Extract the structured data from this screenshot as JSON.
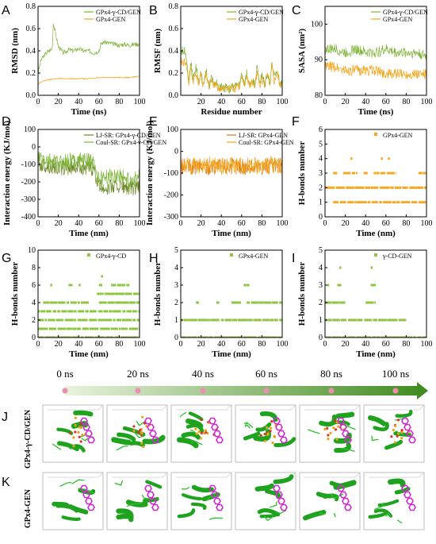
{
  "figure": {
    "panel_letters": [
      "A",
      "B",
      "C",
      "D",
      "E",
      "F",
      "G",
      "H",
      "I",
      "J",
      "K"
    ],
    "timeline": {
      "labels": [
        "0 ns",
        "20 ns",
        "40 ns",
        "60 ns",
        "80 ns",
        "100 ns"
      ]
    },
    "row_labels": {
      "J": "GPx4-γ-CD/GEN",
      "K": "GPx4-GEN"
    }
  },
  "colors": {
    "green": "#7fb43a",
    "orange": "#f2a51c",
    "olive": "#6b8a23",
    "darkorange": "#e07b10",
    "hbond_green": "#8ec63f",
    "hbond_orange": "#f7a823"
  },
  "chart_data": [
    {
      "id": "A",
      "type": "line",
      "xlabel": "Time (ns)",
      "ylabel": "RMSD (nm)",
      "xlim": [
        0,
        100
      ],
      "ylim": [
        0,
        0.8
      ],
      "xticks": [
        0,
        20,
        40,
        60,
        80,
        100
      ],
      "yticks": [
        0.0,
        0.2,
        0.4,
        0.6,
        0.8
      ],
      "series": [
        {
          "name": "GPx4-γ-CD/GEN",
          "x": [
            0,
            3,
            8,
            14,
            15,
            20,
            25,
            30,
            35,
            40,
            45,
            50,
            55,
            60,
            62,
            65,
            70,
            75,
            80,
            85,
            90,
            95,
            100
          ],
          "y": [
            0.2,
            0.32,
            0.38,
            0.42,
            0.65,
            0.44,
            0.38,
            0.41,
            0.4,
            0.42,
            0.4,
            0.4,
            0.38,
            0.4,
            0.46,
            0.48,
            0.47,
            0.46,
            0.45,
            0.46,
            0.45,
            0.46,
            0.46
          ]
        },
        {
          "name": "GPx4-GEN",
          "x": [
            0,
            5,
            10,
            20,
            30,
            40,
            50,
            60,
            70,
            80,
            90,
            100
          ],
          "y": [
            0.1,
            0.13,
            0.14,
            0.15,
            0.15,
            0.15,
            0.15,
            0.16,
            0.16,
            0.16,
            0.16,
            0.17
          ]
        }
      ]
    },
    {
      "id": "B",
      "type": "line",
      "xlabel": "Residue number",
      "ylabel": "RMSF (nm)",
      "xlim": [
        0,
        100
      ],
      "ylim": [
        0,
        0.8
      ],
      "xticks": [
        20,
        40,
        60,
        80,
        100
      ],
      "yticks": [
        0.0,
        0.2,
        0.4,
        0.6,
        0.8
      ],
      "series": [
        {
          "name": "GPx4-γ-CD/GEN",
          "x": [
            5,
            8,
            10,
            12,
            15,
            18,
            20,
            22,
            25,
            28,
            30,
            33,
            35,
            38,
            40,
            43,
            45,
            48,
            50,
            53,
            55,
            58,
            60,
            63,
            65,
            68,
            70,
            73,
            75,
            78,
            80,
            83,
            85,
            88,
            90,
            92,
            95,
            98,
            100
          ],
          "y": [
            0.4,
            0.12,
            0.3,
            0.15,
            0.25,
            0.12,
            0.2,
            0.1,
            0.22,
            0.08,
            0.15,
            0.1,
            0.12,
            0.06,
            0.08,
            0.06,
            0.1,
            0.05,
            0.08,
            0.07,
            0.12,
            0.08,
            0.18,
            0.1,
            0.2,
            0.08,
            0.15,
            0.1,
            0.25,
            0.12,
            0.18,
            0.1,
            0.2,
            0.12,
            0.3,
            0.15,
            0.22,
            0.1,
            0.15
          ]
        },
        {
          "name": "GPx4-GEN",
          "x": [
            5,
            8,
            10,
            12,
            15,
            18,
            20,
            22,
            25,
            28,
            30,
            33,
            35,
            38,
            40,
            43,
            45,
            48,
            50,
            53,
            55,
            58,
            60,
            63,
            65,
            68,
            70,
            73,
            75,
            78,
            80,
            83,
            85,
            88,
            90,
            92,
            95,
            98,
            100
          ],
          "y": [
            0.3,
            0.1,
            0.25,
            0.12,
            0.2,
            0.1,
            0.18,
            0.08,
            0.2,
            0.07,
            0.12,
            0.08,
            0.1,
            0.05,
            0.07,
            0.05,
            0.08,
            0.05,
            0.07,
            0.06,
            0.1,
            0.07,
            0.15,
            0.08,
            0.18,
            0.07,
            0.12,
            0.08,
            0.2,
            0.1,
            0.15,
            0.08,
            0.18,
            0.1,
            0.25,
            0.12,
            0.2,
            0.08,
            0.12
          ]
        }
      ]
    },
    {
      "id": "C",
      "type": "line",
      "xlabel": "Time (ns)",
      "ylabel": "SASA (nm²)",
      "xlim": [
        0,
        100
      ],
      "ylim": [
        80,
        105
      ],
      "xticks": [
        0,
        20,
        40,
        60,
        80,
        100
      ],
      "yticks": [
        80,
        90,
        100
      ],
      "series": [
        {
          "name": "GPx4-γ-CD/GEN",
          "x": [
            0,
            10,
            20,
            30,
            40,
            50,
            60,
            70,
            80,
            90,
            100
          ],
          "y": [
            93,
            93,
            92,
            93,
            92,
            92,
            93,
            92,
            92,
            92,
            91
          ]
        },
        {
          "name": "GPx4-GEN",
          "x": [
            0,
            10,
            20,
            30,
            40,
            50,
            60,
            70,
            80,
            90,
            100
          ],
          "y": [
            88,
            88,
            87,
            87,
            87,
            87,
            86,
            86,
            86,
            86,
            86
          ]
        }
      ]
    },
    {
      "id": "D",
      "type": "line",
      "xlabel": "Time (nm)",
      "ylabel": "Interaction energy (KJ/mol)",
      "xlim": [
        0,
        100
      ],
      "ylim": [
        -400,
        100
      ],
      "xticks": [
        0,
        20,
        40,
        60,
        80,
        100
      ],
      "yticks": [
        -400,
        -300,
        -200,
        -100,
        0,
        100
      ],
      "series": [
        {
          "name": "LJ-SR: GPx4-γ-CD/GEN",
          "x": [
            0,
            10,
            20,
            30,
            40,
            50,
            55,
            60,
            70,
            80,
            90,
            100
          ],
          "y": [
            -100,
            -110,
            -120,
            -120,
            -110,
            -120,
            -130,
            -230,
            -230,
            -220,
            -240,
            -230
          ]
        },
        {
          "name": "Coul-SR: GPx4-γ-CD/GEN",
          "x": [
            0,
            10,
            20,
            30,
            40,
            50,
            55,
            60,
            70,
            80,
            90,
            100
          ],
          "y": [
            -60,
            -80,
            -90,
            -80,
            -70,
            -80,
            -90,
            -180,
            -170,
            -160,
            -190,
            -170
          ]
        }
      ]
    },
    {
      "id": "E",
      "type": "line",
      "xlabel": "Time (nm)",
      "ylabel": "Interaction energy (KJ/mol)",
      "xlim": [
        0,
        100
      ],
      "ylim": [
        -300,
        100
      ],
      "xticks": [
        0,
        20,
        40,
        60,
        80,
        100
      ],
      "yticks": [
        -300,
        -200,
        -100,
        0,
        100
      ],
      "series": [
        {
          "name": "LJ-SR: GPx4-GEN",
          "x": [
            0,
            10,
            20,
            30,
            40,
            50,
            60,
            70,
            80,
            90,
            100
          ],
          "y": [
            -70,
            -75,
            -70,
            -72,
            -70,
            -68,
            -70,
            -72,
            -70,
            -68,
            -70
          ]
        },
        {
          "name": "Coul-SR: GPx4-GEN",
          "x": [
            0,
            10,
            20,
            30,
            40,
            50,
            60,
            70,
            80,
            90,
            100
          ],
          "y": [
            -60,
            -70,
            -65,
            -60,
            -70,
            -62,
            -65,
            -60,
            -70,
            -62,
            -60
          ]
        }
      ]
    },
    {
      "id": "F",
      "type": "scatter",
      "xlabel": "Time (nm)",
      "ylabel": "H-bonds number",
      "xlim": [
        0,
        100
      ],
      "ylim": [
        0,
        6
      ],
      "xticks": [
        0,
        20,
        40,
        60,
        80,
        100
      ],
      "yticks": [
        0,
        1,
        2,
        3,
        4,
        5,
        6
      ],
      "series": [
        {
          "name": "GPx4-GEN",
          "levels": [
            {
              "y": 1,
              "segments": [
                [
                  8,
                  100
                ]
              ]
            },
            {
              "y": 2,
              "segments": [
                [
                  0,
                  100
                ]
              ]
            },
            {
              "y": 3,
              "segments": [
                [
                  8,
                  12
                ],
                [
                  18,
                  32
                ],
                [
                  38,
                  42
                ],
                [
                  48,
                  70
                ],
                [
                  92,
                  100
                ]
              ]
            },
            {
              "y": 4,
              "segments": [
                [
                  25,
                  27
                ],
                [
                  55,
                  57
                ],
                [
                  62,
                  64
                ]
              ]
            }
          ]
        }
      ]
    },
    {
      "id": "G",
      "type": "scatter",
      "xlabel": "Time (nm)",
      "ylabel": "H-bonds number",
      "xlim": [
        0,
        100
      ],
      "ylim": [
        0,
        10
      ],
      "xticks": [
        0,
        20,
        40,
        60,
        80,
        100
      ],
      "yticks": [
        0,
        2,
        4,
        6,
        8,
        10
      ],
      "series": [
        {
          "name": "GPx4-γ-CD",
          "levels": [
            {
              "y": 0,
              "segments": [
                [
                  0,
                  100
                ]
              ]
            },
            {
              "y": 1,
              "segments": [
                [
                  0,
                  100
                ]
              ]
            },
            {
              "y": 2,
              "segments": [
                [
                  0,
                  100
                ]
              ]
            },
            {
              "y": 3,
              "segments": [
                [
                  0,
                  60
                ],
                [
                  60,
                  100
                ]
              ]
            },
            {
              "y": 4,
              "segments": [
                [
                  5,
                  50
                ],
                [
                  60,
                  100
                ]
              ]
            },
            {
              "y": 5,
              "segments": [
                [
                  58,
                  100
                ]
              ]
            },
            {
              "y": 6,
              "segments": [
                [
                  12,
                  14
                ],
                [
                  30,
                  34
                ],
                [
                  40,
                  42
                ],
                [
                  60,
                  64
                ],
                [
                  72,
                  90
                ]
              ]
            },
            {
              "y": 7,
              "segments": [
                [
                  62,
                  64
                ]
              ]
            }
          ]
        }
      ]
    },
    {
      "id": "H",
      "type": "scatter",
      "xlabel": "Time (nm)",
      "ylabel": "H-bonds number",
      "xlim": [
        0,
        100
      ],
      "ylim": [
        0,
        5
      ],
      "xticks": [
        0,
        20,
        40,
        60,
        80,
        100
      ],
      "yticks": [
        0,
        1,
        2,
        3,
        4,
        5
      ],
      "series": [
        {
          "name": "GPx4-GEN",
          "levels": [
            {
              "y": 0,
              "segments": [
                [
                  0,
                  100
                ]
              ]
            },
            {
              "y": 1,
              "segments": [
                [
                  0,
                  100
                ]
              ]
            },
            {
              "y": 2,
              "segments": [
                [
                  15,
                  18
                ],
                [
                  35,
                  38
                ],
                [
                  50,
                  60
                ],
                [
                  65,
                  100
                ]
              ]
            },
            {
              "y": 3,
              "segments": [
                [
                  62,
                  68
                ]
              ]
            }
          ]
        }
      ]
    },
    {
      "id": "I",
      "type": "scatter",
      "xlabel": "Time (nm)",
      "ylabel": "H-bonds number",
      "xlim": [
        0,
        100
      ],
      "ylim": [
        0,
        5
      ],
      "xticks": [
        0,
        20,
        40,
        60,
        80,
        100
      ],
      "yticks": [
        0,
        1,
        2,
        3,
        4,
        5
      ],
      "series": [
        {
          "name": "γ-CD-GEN",
          "levels": [
            {
              "y": 0,
              "segments": [
                [
                  0,
                  100
                ]
              ]
            },
            {
              "y": 1,
              "segments": [
                [
                  0,
                  80
                ]
              ]
            },
            {
              "y": 2,
              "segments": [
                [
                  0,
                  20
                ],
                [
                  40,
                  50
                ]
              ]
            },
            {
              "y": 3,
              "segments": [
                [
                  2,
                  4
                ],
                [
                  12,
                  16
                ],
                [
                  45,
                  50
                ]
              ]
            },
            {
              "y": 4,
              "segments": [
                [
                  14,
                  16
                ],
                [
                  45,
                  47
                ]
              ]
            }
          ]
        }
      ]
    }
  ]
}
